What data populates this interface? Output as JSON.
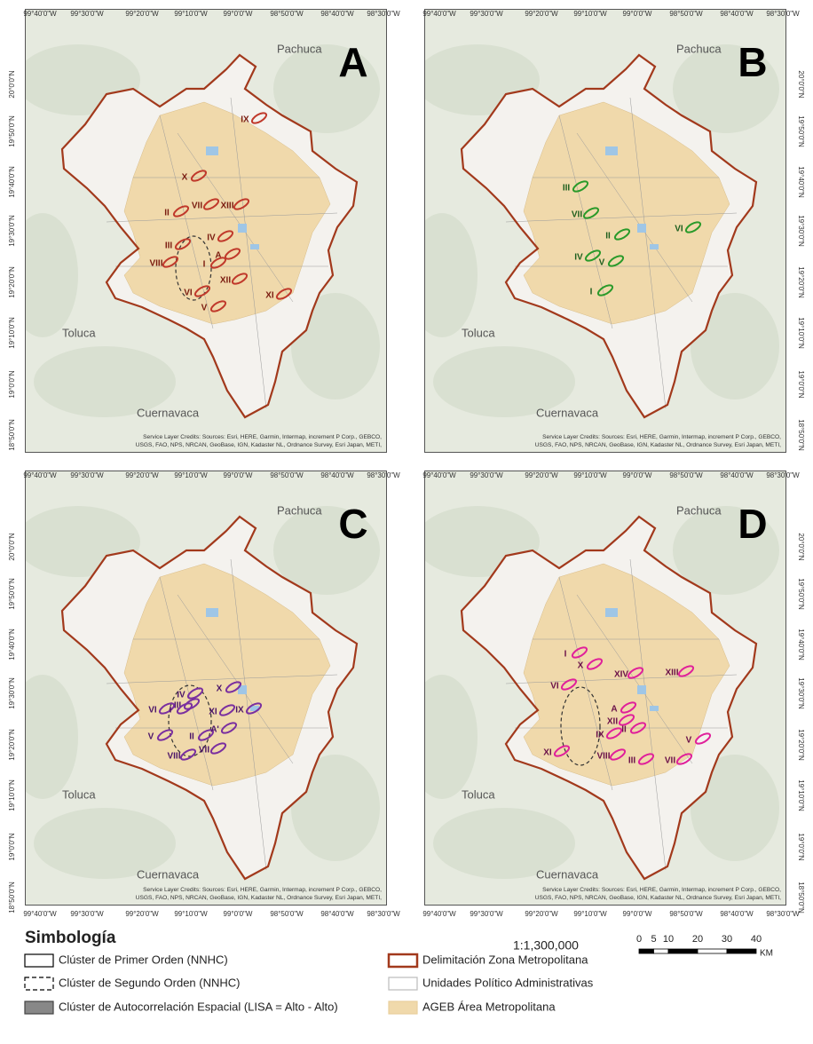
{
  "lon_labels": [
    "99°40'0\"W",
    "99°30'0\"W",
    "99°20'0\"W",
    "99°10'0\"W",
    "99°0'0\"W",
    "98°50'0\"W",
    "98°40'0\"W",
    "98°30'0\"W"
  ],
  "lat_labels": [
    "20°0'0\"N",
    "19°50'0\"N",
    "19°40'0\"N",
    "19°30'0\"N",
    "19°20'0\"N",
    "19°10'0\"N",
    "19°0'0\"N",
    "18°50'0\"N"
  ],
  "credits": [
    "Service Layer Credits: Sources: Esri, HERE, Garmin, Intermap, increment P Corp., GEBCO,",
    "USGS, FAO, NPS, NRCAN, GeoBase, IGN, Kadaster NL, Ordnance Survey, Esri Japan, METI,"
  ],
  "panels": [
    {
      "letter": "A",
      "cities": [
        "Pachuca",
        "Toluca",
        "Cuernavaca"
      ],
      "clusters": [
        "IX",
        "X",
        "II",
        "VII",
        "XIII",
        "IV",
        "III",
        "A",
        "VIII",
        "I",
        "XII",
        "VI",
        "V",
        "XI"
      ]
    },
    {
      "letter": "B",
      "cities": [
        "Pachuca",
        "Toluca",
        "Cuernavaca"
      ],
      "clusters": [
        "III",
        "VII",
        "II",
        "VI",
        "IV",
        "V",
        "I"
      ]
    },
    {
      "letter": "C",
      "cities": [
        "Pachuca",
        "Toluca",
        "Cuernavaca"
      ],
      "clusters": [
        "X",
        "IV",
        "III",
        "VI",
        "I",
        "XI",
        "IX",
        "V",
        "II",
        "A'",
        "VIII",
        "VII"
      ]
    },
    {
      "letter": "D",
      "cities": [
        "Pachuca",
        "Toluca",
        "Cuernavaca"
      ],
      "clusters": [
        "I",
        "X",
        "XIV",
        "XIII",
        "A",
        "VI",
        "XII",
        "IX",
        "II",
        "VIII",
        "III",
        "VII",
        "V",
        "XI"
      ]
    }
  ],
  "legend": {
    "title": "Simbología",
    "items": [
      "Clúster de Primer Orden (NNHC)",
      "Clúster de Segundo Orden (NNHC)",
      "Clúster de Autocorrelación Espacial (LISA = Alto - Alto)",
      "Delimitación Zona Metropolitana",
      "Unidades Político Administrativas",
      "AGEB Área Metropolitana"
    ],
    "scale": "1:1,300,000",
    "scale_bar": [
      0,
      5,
      10,
      20,
      30,
      40
    ],
    "unit": "KM"
  }
}
